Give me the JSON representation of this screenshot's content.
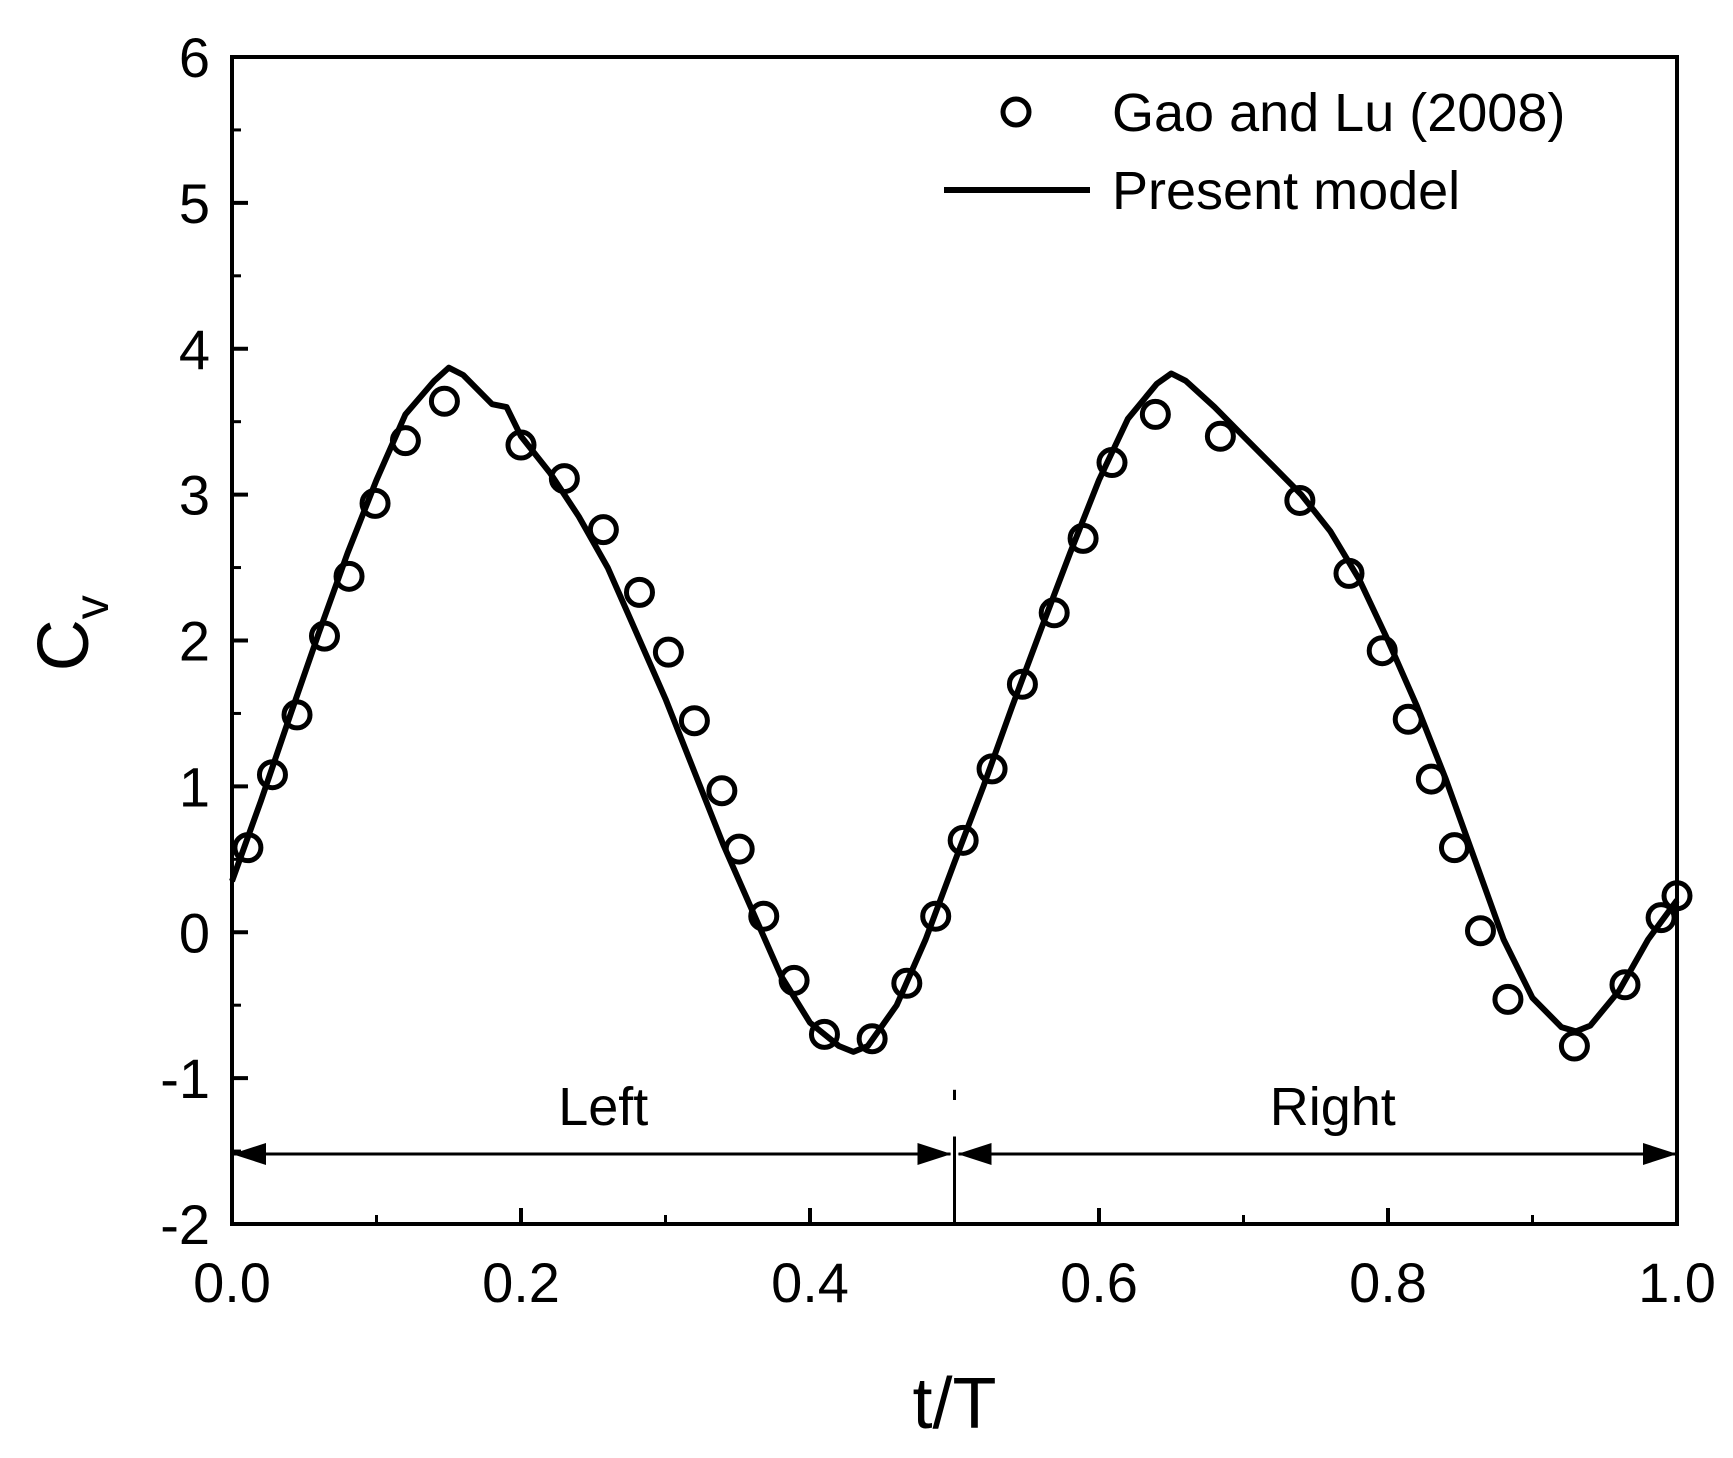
{
  "chart_data": {
    "type": "line",
    "xlabel": "t/T",
    "ylabel": "C",
    "ylabel_subscript": "v",
    "xlim": [
      0.0,
      1.0
    ],
    "ylim": [
      -2,
      6
    ],
    "x_ticks": [
      0.0,
      0.2,
      0.4,
      0.6,
      0.8,
      1.0
    ],
    "x_tick_labels": [
      "0.0",
      "0.2",
      "0.4",
      "0.6",
      "0.8",
      "1.0"
    ],
    "y_ticks": [
      -2,
      -1,
      0,
      1,
      2,
      3,
      4,
      5,
      6
    ],
    "y_tick_labels": [
      "-2",
      "-1",
      "0",
      "1",
      "2",
      "3",
      "4",
      "5",
      "6"
    ],
    "grid": false,
    "legend_position": "top-right",
    "regions": {
      "left_label": "Left",
      "right_label": "Right",
      "divider_x": 0.5,
      "arrow_y": -1.52
    },
    "series": [
      {
        "name": "Gao and Lu (2008)",
        "style": "open-circle",
        "color": "#000000",
        "x": [
          0.011,
          0.028,
          0.045,
          0.064,
          0.081,
          0.099,
          0.12,
          0.147,
          0.2,
          0.23,
          0.257,
          0.282,
          0.302,
          0.32,
          0.339,
          0.351,
          0.368,
          0.389,
          0.41,
          0.443,
          0.467,
          0.487,
          0.506,
          0.526,
          0.547,
          0.569,
          0.589,
          0.609,
          0.639,
          0.684,
          0.739,
          0.773,
          0.796,
          0.814,
          0.83,
          0.846,
          0.864,
          0.883,
          0.929,
          0.964,
          0.989,
          1.0
        ],
        "y": [
          0.58,
          1.08,
          1.49,
          2.03,
          2.44,
          2.94,
          3.37,
          3.64,
          3.34,
          3.11,
          2.76,
          2.33,
          1.92,
          1.45,
          0.97,
          0.57,
          0.11,
          -0.33,
          -0.7,
          -0.73,
          -0.35,
          0.11,
          0.63,
          1.12,
          1.7,
          2.19,
          2.7,
          3.22,
          3.55,
          3.4,
          2.96,
          2.46,
          1.93,
          1.46,
          1.05,
          0.58,
          0.01,
          -0.46,
          -0.78,
          -0.36,
          0.1,
          0.25
        ]
      },
      {
        "name": "Present model",
        "style": "solid-line",
        "color": "#000000",
        "x": [
          0.0,
          0.02,
          0.04,
          0.06,
          0.08,
          0.1,
          0.12,
          0.14,
          0.15,
          0.16,
          0.18,
          0.19,
          0.2,
          0.22,
          0.24,
          0.26,
          0.28,
          0.3,
          0.32,
          0.34,
          0.36,
          0.38,
          0.4,
          0.42,
          0.43,
          0.44,
          0.46,
          0.48,
          0.5,
          0.52,
          0.54,
          0.56,
          0.58,
          0.6,
          0.62,
          0.64,
          0.65,
          0.66,
          0.68,
          0.7,
          0.72,
          0.74,
          0.76,
          0.78,
          0.8,
          0.82,
          0.84,
          0.86,
          0.88,
          0.9,
          0.92,
          0.93,
          0.94,
          0.96,
          0.98,
          1.0
        ],
        "y": [
          0.35,
          0.9,
          1.48,
          2.05,
          2.6,
          3.1,
          3.55,
          3.78,
          3.87,
          3.82,
          3.62,
          3.6,
          3.4,
          3.15,
          2.85,
          2.5,
          2.05,
          1.6,
          1.1,
          0.6,
          0.15,
          -0.3,
          -0.62,
          -0.78,
          -0.82,
          -0.78,
          -0.5,
          -0.05,
          0.48,
          1.0,
          1.55,
          2.08,
          2.6,
          3.1,
          3.52,
          3.76,
          3.83,
          3.78,
          3.6,
          3.4,
          3.2,
          3.0,
          2.75,
          2.42,
          2.0,
          1.55,
          1.05,
          0.5,
          -0.05,
          -0.45,
          -0.65,
          -0.68,
          -0.64,
          -0.4,
          -0.05,
          0.22
        ]
      }
    ]
  }
}
